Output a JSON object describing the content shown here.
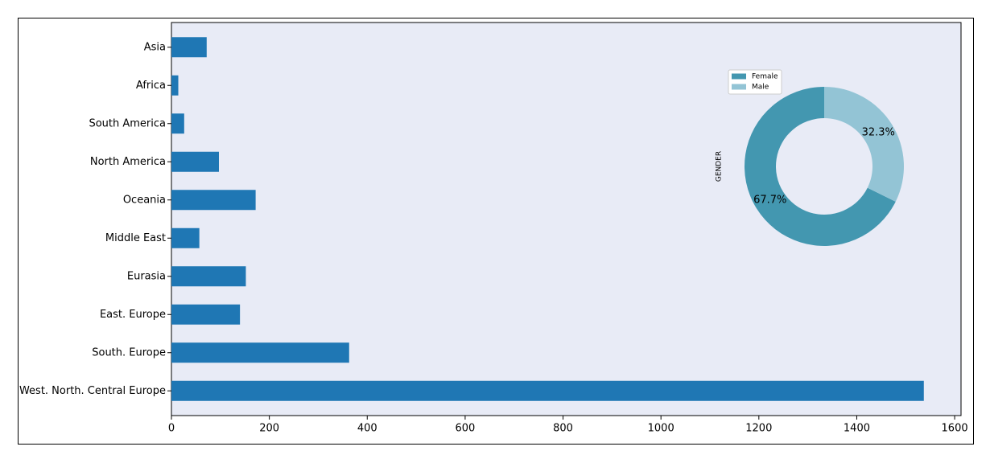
{
  "chart_data": [
    {
      "type": "barh",
      "categories": [
        "Asia",
        "Africa",
        "South America",
        "North America",
        "Oceania",
        "Middle East",
        "Eurasia",
        "East. Europe",
        "South. Europe",
        "West. North. Central Europe"
      ],
      "values": [
        72,
        14,
        26,
        97,
        172,
        57,
        152,
        140,
        363,
        1537
      ],
      "color": "#1f77b4",
      "xlim": [
        0,
        1613
      ],
      "xticks": [
        0,
        200,
        400,
        600,
        800,
        1000,
        1200,
        1400,
        1600
      ]
    },
    {
      "type": "donut",
      "ylabel": "GENDER",
      "categories": [
        "Female",
        "Male"
      ],
      "values": [
        67.7,
        32.3
      ],
      "value_labels": [
        "67.7%",
        "32.3%"
      ],
      "colors": [
        "#4397b0",
        "#93c4d5"
      ],
      "legend": "upper left"
    }
  ]
}
